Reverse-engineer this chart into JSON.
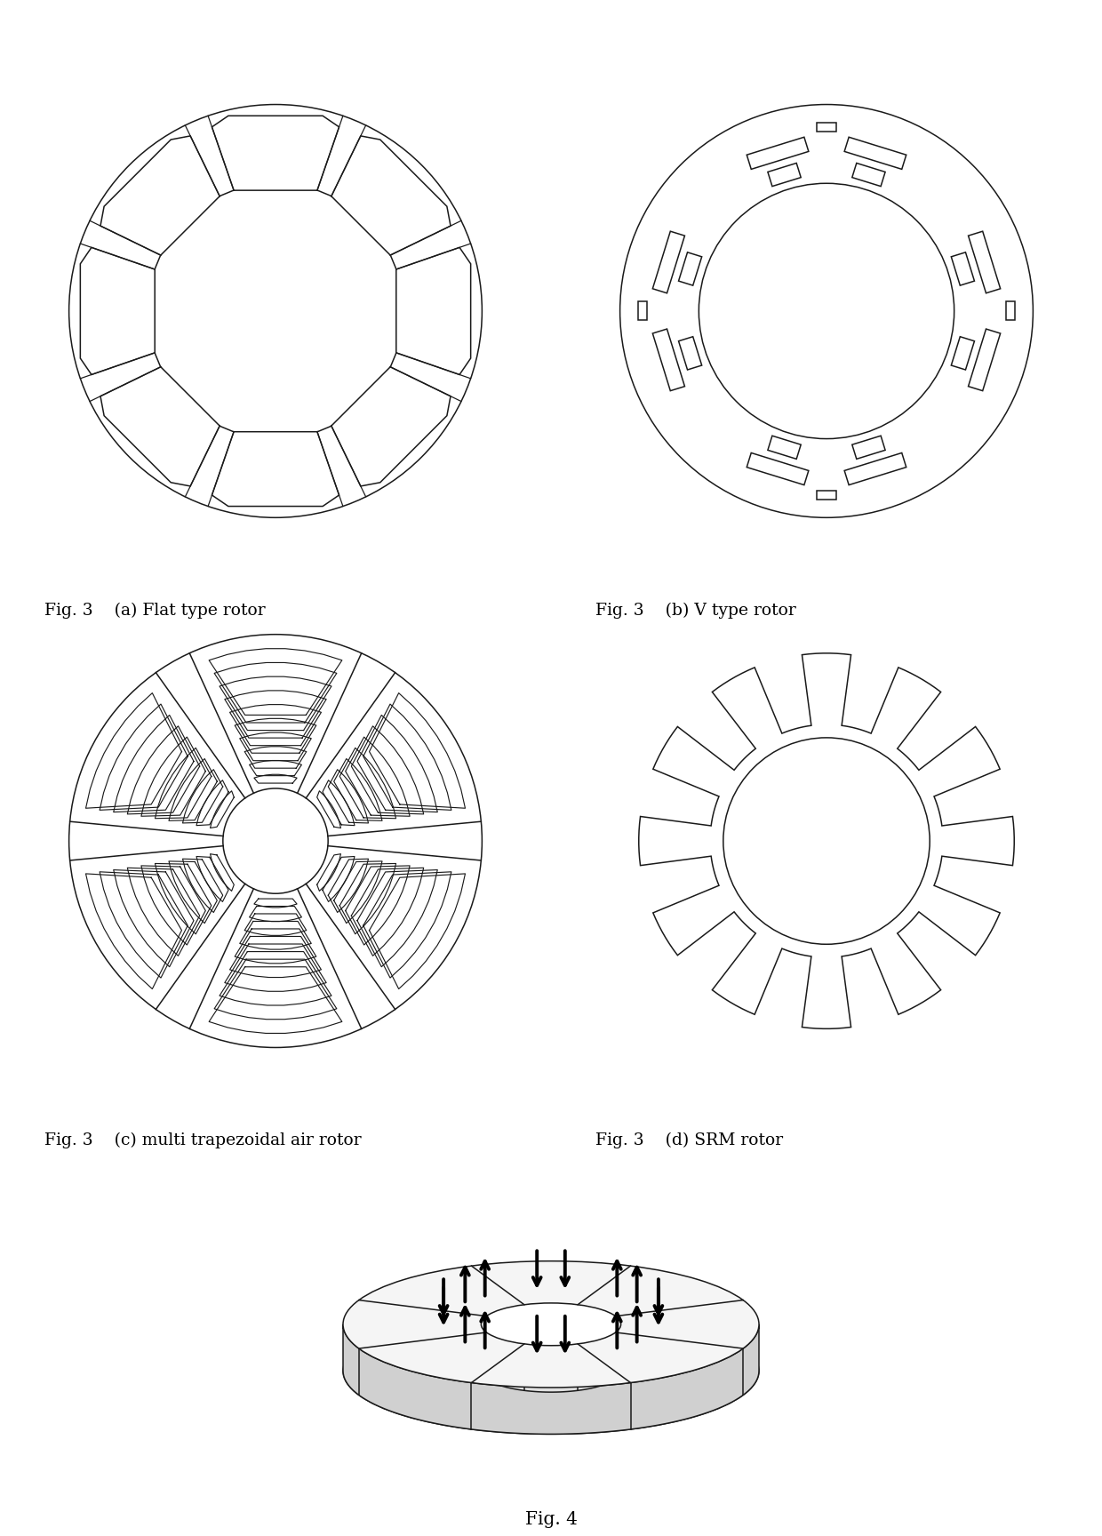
{
  "bg": "#ffffff",
  "lc": "#1a1a1a",
  "lw": 1.1,
  "fs": 13.5,
  "prefix": "Fig. 3",
  "fig4": "Fig. 4",
  "cap_a": "(a) Flat type rotor",
  "cap_b": "(b) V type rotor",
  "cap_c": "(c) multi trapezoidal air rotor",
  "cap_d": "(d) SRM rotor",
  "n_flat": 8,
  "n_v_poles": 4,
  "n_trap_poles": 6,
  "n_trap_barriers": 10,
  "n_srm_teeth": 12,
  "n_fig4_seg": 8
}
